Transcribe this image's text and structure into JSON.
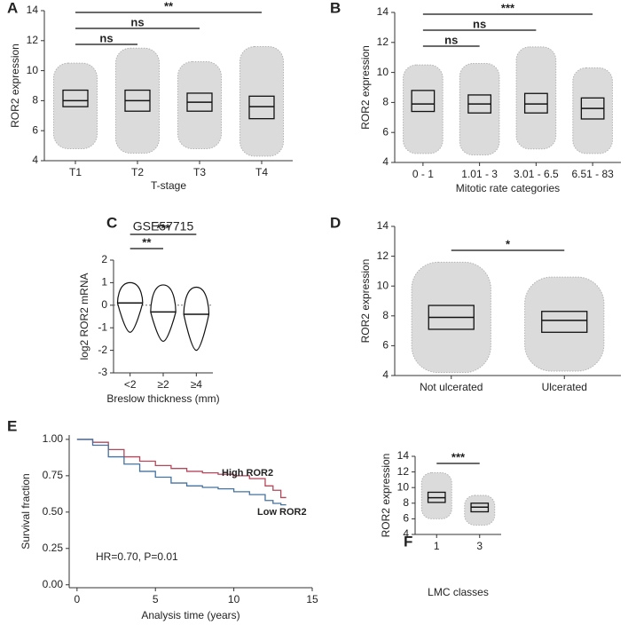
{
  "chart_data": [
    {
      "type": "box",
      "panel": "A",
      "y_label": "ROR2 expression",
      "x_label": "T-stage",
      "categories": [
        "T1",
        "T2",
        "T3",
        "T4"
      ],
      "boxes": [
        {
          "min": 4.8,
          "q1": 7.6,
          "median": 8.0,
          "q3": 8.7,
          "max": 10.5
        },
        {
          "min": 4.5,
          "q1": 7.3,
          "median": 8.0,
          "q3": 8.7,
          "max": 11.5
        },
        {
          "min": 4.8,
          "q1": 7.3,
          "median": 7.9,
          "q3": 8.5,
          "max": 10.6
        },
        {
          "min": 4.3,
          "q1": 6.8,
          "median": 7.6,
          "q3": 8.3,
          "max": 11.6
        }
      ],
      "ylim": [
        4,
        14
      ],
      "yticks": [
        4,
        6,
        8,
        10,
        12,
        14
      ],
      "brackets": [
        {
          "between": [
            0,
            1
          ],
          "label": "ns"
        },
        {
          "between": [
            0,
            2
          ],
          "label": "ns"
        },
        {
          "between": [
            0,
            3
          ],
          "label": "**"
        }
      ]
    },
    {
      "type": "box",
      "panel": "B",
      "y_label": "ROR2 expression",
      "x_label": "Mitotic rate categories",
      "categories": [
        "0 - 1",
        "1.01 - 3",
        "3.01 - 6.5",
        "6.51 - 83"
      ],
      "boxes": [
        {
          "min": 4.6,
          "q1": 7.4,
          "median": 7.9,
          "q3": 8.8,
          "max": 10.5
        },
        {
          "min": 4.5,
          "q1": 7.3,
          "median": 7.9,
          "q3": 8.5,
          "max": 10.6
        },
        {
          "min": 4.9,
          "q1": 7.3,
          "median": 7.9,
          "q3": 8.6,
          "max": 11.7
        },
        {
          "min": 4.6,
          "q1": 6.9,
          "median": 7.6,
          "q3": 8.3,
          "max": 10.3
        }
      ],
      "ylim": [
        4,
        14
      ],
      "yticks": [
        4,
        6,
        8,
        10,
        12,
        14
      ],
      "brackets": [
        {
          "between": [
            0,
            1
          ],
          "label": "ns"
        },
        {
          "between": [
            0,
            2
          ],
          "label": "ns"
        },
        {
          "between": [
            0,
            3
          ],
          "label": "***"
        }
      ]
    },
    {
      "type": "violin",
      "panel": "C",
      "title": "GSE57715",
      "y_label": "log2 ROR2 mRNA",
      "x_label": "Breslow thickness (mm)",
      "categories": [
        "<2",
        "≥2",
        "≥4"
      ],
      "boxes": [
        {
          "min": -1.2,
          "median": 0.1,
          "max": 1.0
        },
        {
          "min": -1.6,
          "median": -0.3,
          "max": 0.9
        },
        {
          "min": -2.0,
          "median": -0.4,
          "max": 0.8
        }
      ],
      "ylim": [
        -3,
        2
      ],
      "yticks": [
        -3,
        -2,
        -1,
        0,
        1,
        2
      ],
      "reference_line": 0,
      "brackets": [
        {
          "between": [
            0,
            1
          ],
          "label": "**"
        },
        {
          "between": [
            0,
            2
          ],
          "label": "***"
        }
      ]
    },
    {
      "type": "box",
      "panel": "D",
      "y_label": "ROR2 expression",
      "categories": [
        "Not ulcerated",
        "Ulcerated"
      ],
      "boxes": [
        {
          "min": 4.2,
          "q1": 7.1,
          "median": 7.9,
          "q3": 8.7,
          "max": 11.6
        },
        {
          "min": 4.3,
          "q1": 6.9,
          "median": 7.7,
          "q3": 8.3,
          "max": 10.6
        }
      ],
      "ylim": [
        4,
        14
      ],
      "yticks": [
        4,
        6,
        8,
        10,
        12,
        14
      ],
      "brackets": [
        {
          "between": [
            0,
            1
          ],
          "label": "*"
        }
      ]
    },
    {
      "type": "step",
      "panel": "E",
      "y_label": "Survival fraction",
      "x_label": "Analysis time (years)",
      "annotation": "HR=0.70, P=0.01",
      "x": [
        0,
        1,
        2,
        3,
        4,
        5,
        6,
        7,
        8,
        9,
        10,
        11,
        12,
        12.5,
        13
      ],
      "series": [
        {
          "name": "High ROR2",
          "color": "#b5475a",
          "values": [
            1,
            0.98,
            0.93,
            0.88,
            0.85,
            0.82,
            0.8,
            0.78,
            0.77,
            0.76,
            0.75,
            0.73,
            0.68,
            0.65,
            0.6
          ]
        },
        {
          "name": "Low ROR2",
          "color": "#45729e",
          "values": [
            1,
            0.96,
            0.88,
            0.83,
            0.78,
            0.74,
            0.7,
            0.68,
            0.67,
            0.66,
            0.64,
            0.62,
            0.58,
            0.56,
            0.55
          ]
        }
      ],
      "xlim": [
        -0.5,
        15
      ],
      "xticks": [
        0,
        5,
        10,
        15
      ],
      "ylim": [
        -0.02,
        1.03
      ],
      "yticks": [
        {
          "value": 0,
          "label": "0.00"
        },
        0.25,
        {
          "value": 0.5,
          "label": "0.50"
        },
        0.75,
        {
          "value": 1,
          "label": "1.00"
        }
      ]
    },
    {
      "type": "box",
      "panel": "F",
      "y_label": "ROR2 expression",
      "x_label": "LMC classes",
      "categories": [
        "1",
        "3"
      ],
      "boxes": [
        {
          "min": 6.0,
          "q1": 8.1,
          "median": 8.7,
          "q3": 9.4,
          "max": 11.9
        },
        {
          "min": 5.2,
          "q1": 6.9,
          "median": 7.5,
          "q3": 8.0,
          "max": 9.0
        }
      ],
      "ylim": [
        4,
        14
      ],
      "yticks": [
        4,
        6,
        8,
        10,
        12,
        14
      ],
      "brackets": [
        {
          "between": [
            0,
            1
          ],
          "label": "***"
        }
      ]
    }
  ]
}
